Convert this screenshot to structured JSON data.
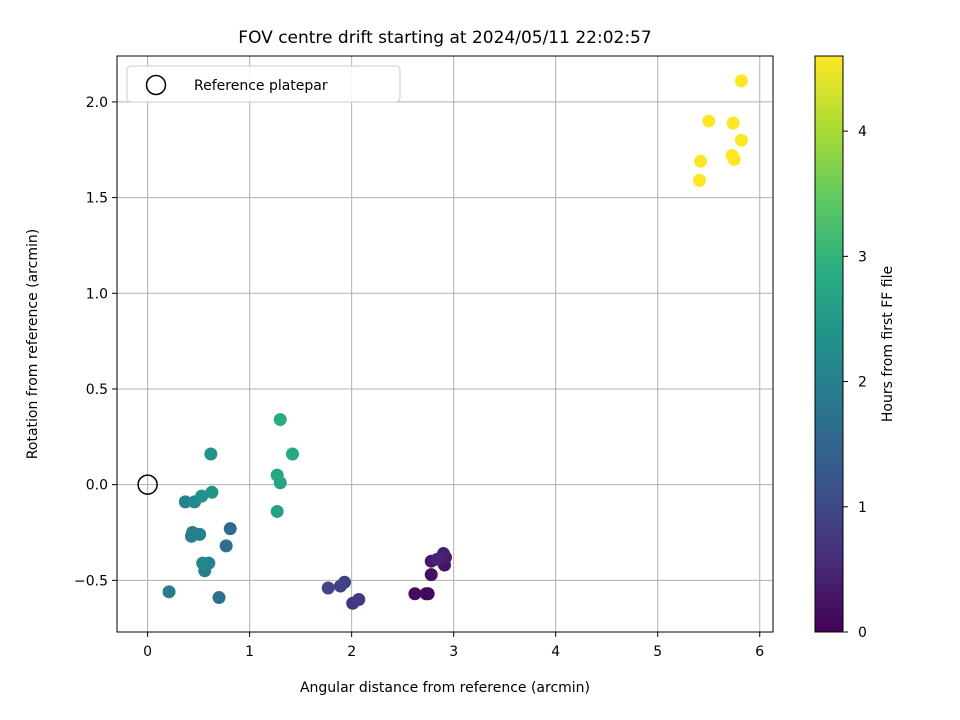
{
  "chart_data": {
    "type": "scatter",
    "title": "FOV centre drift starting at 2024/05/11 22:02:57",
    "xlabel": "Angular distance from reference (arcmin)",
    "ylabel": "Rotation from reference (arcmin)",
    "xlim": [
      -0.3,
      6.13
    ],
    "ylim": [
      -0.77,
      2.24
    ],
    "xticks": [
      0,
      1,
      2,
      3,
      4,
      5,
      6
    ],
    "xtick_labels": [
      "0",
      "1",
      "2",
      "3",
      "4",
      "5",
      "6"
    ],
    "yticks": [
      -0.5,
      0.0,
      0.5,
      1.0,
      1.5,
      2.0
    ],
    "ytick_labels": [
      "−0.5",
      "0.0",
      "0.5",
      "1.0",
      "1.5",
      "2.0"
    ],
    "grid": true,
    "legend": {
      "location": "upper left",
      "entries": [
        "Reference platepar"
      ]
    },
    "reference_point": {
      "x": 0,
      "y": 0,
      "marker": "open-circle",
      "color": "#000000"
    },
    "colorbar": {
      "label": "Hours from first FF file",
      "min": 0,
      "max": 4.6,
      "ticks": [
        0,
        1,
        2,
        3,
        4
      ],
      "tick_labels": [
        "0",
        "1",
        "2",
        "3",
        "4"
      ],
      "colormap": "viridis"
    },
    "points": [
      {
        "x": 2.75,
        "y": -0.57,
        "t": 0.05
      },
      {
        "x": 2.73,
        "y": -0.57,
        "t": 0.1
      },
      {
        "x": 2.62,
        "y": -0.57,
        "t": 0.15
      },
      {
        "x": 2.78,
        "y": -0.47,
        "t": 0.2
      },
      {
        "x": 2.91,
        "y": -0.42,
        "t": 0.25
      },
      {
        "x": 2.78,
        "y": -0.4,
        "t": 0.3
      },
      {
        "x": 2.92,
        "y": -0.38,
        "t": 0.35
      },
      {
        "x": 2.9,
        "y": -0.36,
        "t": 0.4
      },
      {
        "x": 2.84,
        "y": -0.39,
        "t": 0.45
      },
      {
        "x": 2.01,
        "y": -0.62,
        "t": 0.75
      },
      {
        "x": 2.07,
        "y": -0.6,
        "t": 0.8
      },
      {
        "x": 1.93,
        "y": -0.51,
        "t": 0.85
      },
      {
        "x": 1.89,
        "y": -0.53,
        "t": 0.9
      },
      {
        "x": 1.77,
        "y": -0.54,
        "t": 0.95
      },
      {
        "x": 0.7,
        "y": -0.59,
        "t": 1.7
      },
      {
        "x": 0.77,
        "y": -0.32,
        "t": 1.65
      },
      {
        "x": 0.81,
        "y": -0.23,
        "t": 1.6
      },
      {
        "x": 0.21,
        "y": -0.56,
        "t": 1.9
      },
      {
        "x": 0.56,
        "y": -0.45,
        "t": 2.0
      },
      {
        "x": 0.6,
        "y": -0.41,
        "t": 2.05
      },
      {
        "x": 0.54,
        "y": -0.41,
        "t": 2.1
      },
      {
        "x": 0.43,
        "y": -0.27,
        "t": 2.0
      },
      {
        "x": 0.44,
        "y": -0.25,
        "t": 1.95
      },
      {
        "x": 0.51,
        "y": -0.26,
        "t": 2.0
      },
      {
        "x": 0.37,
        "y": -0.09,
        "t": 2.05
      },
      {
        "x": 0.46,
        "y": -0.09,
        "t": 2.1
      },
      {
        "x": 0.53,
        "y": -0.06,
        "t": 2.3
      },
      {
        "x": 0.63,
        "y": -0.04,
        "t": 2.35
      },
      {
        "x": 0.62,
        "y": 0.16,
        "t": 2.4
      },
      {
        "x": 1.27,
        "y": -0.14,
        "t": 2.65
      },
      {
        "x": 1.3,
        "y": 0.01,
        "t": 2.7
      },
      {
        "x": 1.27,
        "y": 0.05,
        "t": 2.75
      },
      {
        "x": 1.42,
        "y": 0.16,
        "t": 2.8
      },
      {
        "x": 1.3,
        "y": 0.34,
        "t": 2.85
      },
      {
        "x": 5.41,
        "y": 1.59,
        "t": 4.6
      },
      {
        "x": 5.42,
        "y": 1.69,
        "t": 4.6
      },
      {
        "x": 5.5,
        "y": 1.9,
        "t": 4.6
      },
      {
        "x": 5.73,
        "y": 1.72,
        "t": 4.6
      },
      {
        "x": 5.75,
        "y": 1.7,
        "t": 4.6
      },
      {
        "x": 5.74,
        "y": 1.89,
        "t": 4.6
      },
      {
        "x": 5.82,
        "y": 1.8,
        "t": 4.6
      },
      {
        "x": 5.82,
        "y": 2.11,
        "t": 4.6
      }
    ]
  }
}
